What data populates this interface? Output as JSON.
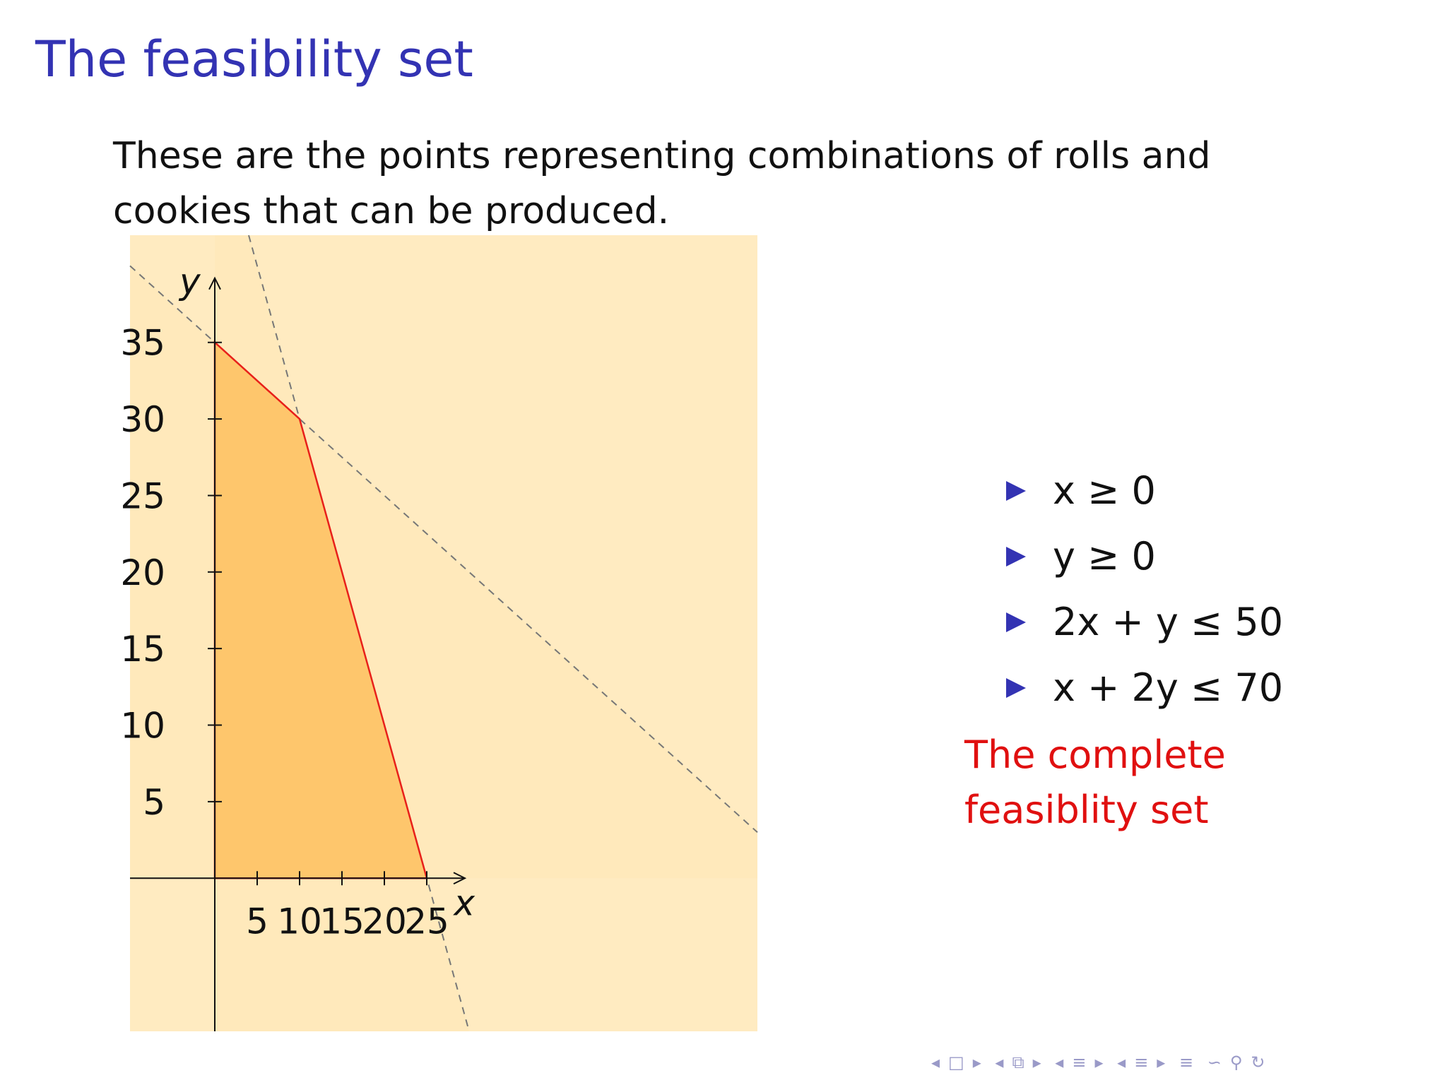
{
  "slide": {
    "title": "The feasibility set",
    "intro": "These are the points representing combinations of rolls and cookies that can be produced."
  },
  "constraints": [
    "x ≥ 0",
    "y ≥ 0",
    "2x + y ≤ 50",
    "x + 2y ≤ 70"
  ],
  "note": "The complete feasiblity set",
  "nav_icons": [
    "◂",
    "□",
    "▸",
    "◂",
    "⧉",
    "▸",
    "◂",
    "≡",
    "▸",
    "◂",
    "≡",
    "▸",
    "≡",
    "∽",
    "⚲",
    "↻"
  ],
  "colors": {
    "title": "#3333b3",
    "bullet": "#3333b3",
    "note": "#e01010",
    "feasible_region": "#fec66c",
    "feasible_boundary": "#e8201a",
    "half_plane": "#ffe8b8",
    "constraint_line": "#777777"
  },
  "chart_data": {
    "type": "area",
    "title": "",
    "xlabel": "x",
    "ylabel": "y",
    "xlim": [
      -10,
      64
    ],
    "ylim": [
      -10,
      42
    ],
    "x_ticks": [
      5,
      10,
      15,
      20,
      25
    ],
    "y_ticks": [
      5,
      10,
      15,
      20,
      25,
      30,
      35
    ],
    "feasible_region": {
      "vertices": [
        [
          0,
          0
        ],
        [
          25,
          0
        ],
        [
          10,
          30
        ],
        [
          0,
          35
        ]
      ]
    },
    "constraint_lines": [
      {
        "equation": "2x + y = 50",
        "style": "dashed"
      },
      {
        "equation": "x + 2y = 70",
        "style": "dashed"
      }
    ],
    "grid": false
  }
}
